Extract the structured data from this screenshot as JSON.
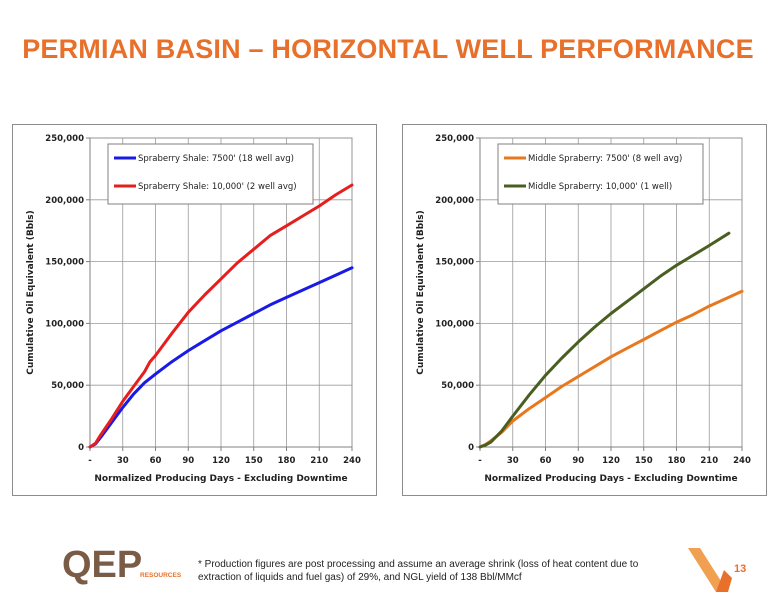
{
  "page": {
    "title": "PERMIAN BASIN – HORIZONTAL WELL PERFORMANCE",
    "footnote": "* Production figures are post processing and assume an average shrink (loss of heat content due to extraction of liquids and fuel gas) of 29%, and NGL yield of 138 Bbl/MMcf",
    "page_number": "13",
    "logo_text": "QEP",
    "logo_subtext": "RESOURCES"
  },
  "colors": {
    "title": "#e8702a",
    "blue": "#1a1ae6",
    "red": "#e61e1e",
    "orange": "#e8781e",
    "green": "#4a5e22"
  },
  "chart_data": [
    {
      "type": "line",
      "xlabel": "Normalized Producing Days - Excluding Downtime",
      "ylabel": "Cumulative Oil Equivalent (Bbls)",
      "xlim": [
        0,
        240
      ],
      "ylim": [
        0,
        250000
      ],
      "x_ticks": [
        0,
        30,
        60,
        90,
        120,
        150,
        180,
        210,
        240
      ],
      "x_tick_labels": [
        "-",
        "30",
        "60",
        "90",
        "120",
        "150",
        "180",
        "210",
        "240"
      ],
      "y_ticks": [
        0,
        50000,
        100000,
        150000,
        200000,
        250000
      ],
      "y_tick_labels": [
        "0",
        "50,000",
        "100,000",
        "150,000",
        "200,000",
        "250,000"
      ],
      "grid": true,
      "legend": "top-left",
      "series": [
        {
          "name": "Spraberry Shale: 7500' (18 well avg)",
          "color": "#1a1ae6",
          "x": [
            0,
            5,
            10,
            20,
            30,
            40,
            50,
            60,
            75,
            90,
            105,
            120,
            135,
            150,
            165,
            180,
            195,
            210,
            225,
            240
          ],
          "y": [
            0,
            2500,
            8000,
            20000,
            32000,
            43000,
            52000,
            59000,
            69000,
            78000,
            86000,
            94000,
            101000,
            108000,
            115000,
            121000,
            127000,
            133000,
            139000,
            145000
          ]
        },
        {
          "name": "Spraberry Shale: 10,000' (2 well avg)",
          "color": "#e61e1e",
          "x": [
            0,
            5,
            10,
            20,
            30,
            40,
            50,
            55,
            60,
            75,
            90,
            105,
            120,
            135,
            150,
            165,
            180,
            195,
            210,
            225,
            240
          ],
          "y": [
            0,
            3000,
            10000,
            23000,
            37000,
            49000,
            61000,
            69000,
            74000,
            92000,
            109000,
            123000,
            136000,
            149000,
            160000,
            171000,
            179000,
            187000,
            195000,
            204000,
            212000
          ]
        }
      ]
    },
    {
      "type": "line",
      "xlabel": "Normalized Producing Days - Excluding Downtime",
      "ylabel": "Cumulative Oil Equivalent (Bbls)",
      "xlim": [
        0,
        240
      ],
      "ylim": [
        0,
        250000
      ],
      "x_ticks": [
        0,
        30,
        60,
        90,
        120,
        150,
        180,
        210,
        240
      ],
      "x_tick_labels": [
        "-",
        "30",
        "60",
        "90",
        "120",
        "150",
        "180",
        "210",
        "240"
      ],
      "y_ticks": [
        0,
        50000,
        100000,
        150000,
        200000,
        250000
      ],
      "y_tick_labels": [
        "0",
        "50,000",
        "100,000",
        "150,000",
        "200,000",
        "250,000"
      ],
      "grid": true,
      "legend": "top-left",
      "series": [
        {
          "name": "Middle Spraberry: 7500' (8 well avg)",
          "color": "#e8781e",
          "x": [
            0,
            5,
            10,
            20,
            30,
            45,
            60,
            75,
            90,
            105,
            120,
            135,
            150,
            165,
            180,
            195,
            210,
            225,
            240
          ],
          "y": [
            0,
            2000,
            5000,
            12000,
            21000,
            31000,
            40000,
            49000,
            57000,
            65000,
            73000,
            80000,
            87000,
            94000,
            101000,
            107000,
            114000,
            120000,
            126000
          ]
        },
        {
          "name": "Middle Spraberry: 10,000' (1 well)",
          "color": "#4a5e22",
          "x": [
            0,
            5,
            10,
            20,
            30,
            45,
            60,
            75,
            90,
            105,
            120,
            135,
            150,
            165,
            180,
            195,
            210,
            228
          ],
          "y": [
            0,
            1500,
            4000,
            13000,
            25000,
            42000,
            58000,
            72000,
            85000,
            97000,
            108000,
            118000,
            128000,
            138000,
            147000,
            155000,
            163000,
            173000
          ]
        }
      ]
    }
  ]
}
